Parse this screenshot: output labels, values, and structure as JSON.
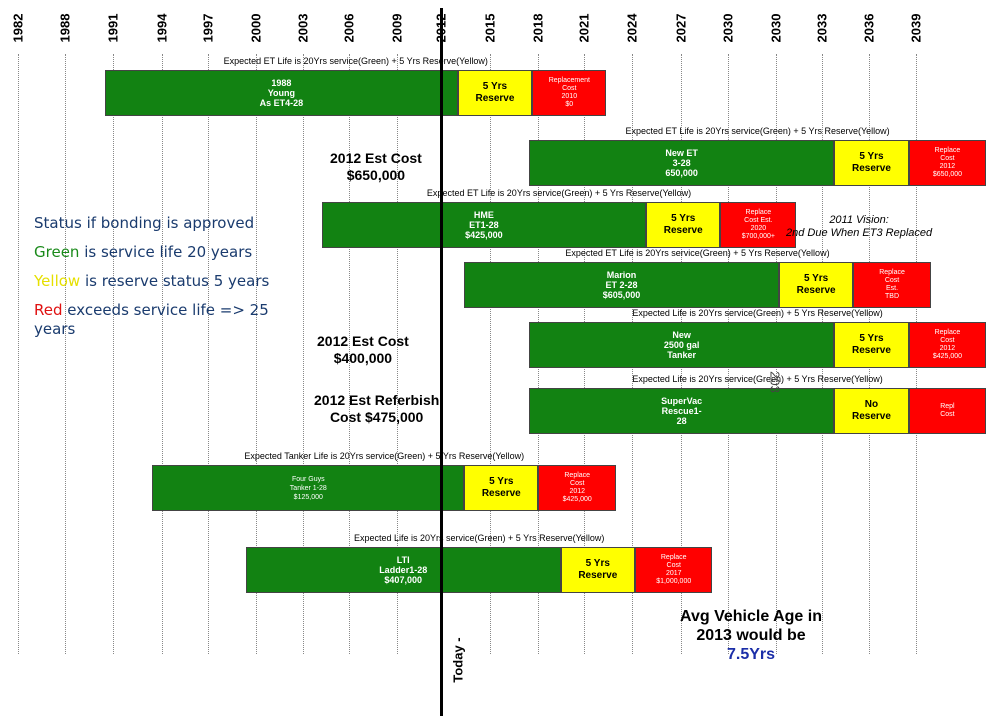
{
  "chart_data": {
    "type": "timeline",
    "x_ticks": [
      "1982",
      "1988",
      "1991",
      "1994",
      "1997",
      "2000",
      "2003",
      "2006",
      "2009",
      "2012",
      "2015",
      "2018",
      "2021",
      "2024",
      "2027",
      "2030",
      "2030",
      "2033",
      "2036",
      "2039"
    ],
    "today_label": "Today -",
    "series_colors": {
      "service": "#128212",
      "reserve": "#ffff00",
      "replace": "#ff0000"
    },
    "rows": [
      {
        "caption": "Expected ET Life is 20Yrs service(Green) + 5 Yrs  Reserve(Yellow)",
        "service": {
          "label": "1988\nYoung\nAs ET4-28",
          "start": 1987.5,
          "end": 2009.8
        },
        "reserve": {
          "label": "5 Yrs\nReserve",
          "start": 2009.8,
          "end": 2014.5
        },
        "replace": {
          "label": "Replacement\nCost\n2010\n$0",
          "start": 2014.5,
          "end": 2019.2
        }
      },
      {
        "caption": "Expected ET Life is 20Yrs service(Green) + 5 Yrs  Reserve(Yellow)",
        "service": {
          "label": "New ET\n3-28\n650,000",
          "start": 2014.3,
          "end": 2033.6
        },
        "reserve": {
          "label": "5 Yrs\nReserve",
          "start": 2033.6,
          "end": 2038.3
        },
        "replace": {
          "label": "Replace\nCost\n2012\n$650,000",
          "start": 2038.3,
          "end": 2043.2
        }
      },
      {
        "caption": "Expected ET Life is 20Yrs service(Green) + 5 Yrs  Reserve(Yellow)",
        "service": {
          "label": "HME\nET1-28\n$425,000",
          "start": 2001.2,
          "end": 2021.7
        },
        "reserve": {
          "label": "5 Yrs\nReserve",
          "start": 2021.7,
          "end": 2026.4
        },
        "replace": {
          "label": "Replace\nCost Est.\n2020\n$700,000+",
          "start": 2026.4,
          "end": 2031.2
        }
      },
      {
        "caption": "Expected ET Life is 20Yrs service(Green) + 5 Yrs  Reserve(Yellow)",
        "service": {
          "label": "Marion\nET 2-28\n$605,000",
          "start": 2010.2,
          "end": 2030.1
        },
        "reserve": {
          "label": "5 Yrs\nReserve",
          "start": 2030.1,
          "end": 2034.8
        },
        "replace": {
          "label": "Replace\nCost\nEst.\nTBD",
          "start": 2034.8,
          "end": 2039.7
        }
      },
      {
        "caption": "Expected Life is 20Yrs service(Green) + 5 Yrs  Reserve(Yellow)",
        "service": {
          "label": "New\n2500 gal\nTanker",
          "start": 2014.3,
          "end": 2033.6
        },
        "reserve": {
          "label": "5 Yrs\nReserve",
          "start": 2033.6,
          "end": 2038.3
        },
        "replace": {
          "label": "Replace\nCost\n2012\n$425,000",
          "start": 2038.3,
          "end": 2043.2
        }
      },
      {
        "caption": "Expected Life is 20Yrs service(Green) + 5 Yrs  Reserve(Yellow)",
        "service": {
          "label": "SuperVac\nRescue1-\n28",
          "start": 2014.3,
          "end": 2033.6
        },
        "reserve": {
          "label": "No\nReserve",
          "start": 2033.6,
          "end": 2038.3
        },
        "replace": {
          "label": "Repl\nCost",
          "start": 2038.3,
          "end": 2043.2
        }
      },
      {
        "caption": "Expected Tanker Life is 20Yrs service(Green) + 5 Yrs  Reserve(Yellow)",
        "service": {
          "label": "Four Guys\nTanker 1-28\n$125,000",
          "start": 1990.5,
          "end": 2010.2
        },
        "reserve": {
          "label": "5 Yrs\nReserve",
          "start": 2010.2,
          "end": 2014.9
        },
        "replace": {
          "label": "Replace\nCost\n2012\n$425,000",
          "start": 2014.9,
          "end": 2019.8
        }
      },
      {
        "caption": "Expected Life is 20Yrs service(Green) + 5 Yrs  Reserve(Yellow)",
        "service": {
          "label": "LTI\nLadder1-28\n$407,000",
          "start": 1996.4,
          "end": 2016.3
        },
        "reserve": {
          "label": "5 Yrs\nReserve",
          "start": 2016.3,
          "end": 2021.0
        },
        "replace": {
          "label": "Replace\nCost\n2017\n$1,000,000",
          "start": 2021.0,
          "end": 2025.9
        }
      }
    ]
  },
  "notes": {
    "est_cost_1": "2012 Est  Cost\n$650,000",
    "est_cost_2": "2012 Est  Cost\n$400,000",
    "est_refurbish": "2012 Est Referbish\nCost $475,000",
    "vision": "2011 Vision:\n2nd Due When ET3 Replaced",
    "fragment": "203",
    "avg_line1": "Avg Vehicle Age in",
    "avg_line2": "2013 would be",
    "avg_value": "7.5Yrs"
  },
  "legend": {
    "status": "Status if bonding is approved",
    "green_word": "Green",
    "green_rest": " is service life 20 years",
    "yellow_word": "Yellow",
    "yellow_rest": " is reserve status 5 years",
    "red_word": "Red",
    "red_rest": " exceeds service life => 25 years"
  }
}
